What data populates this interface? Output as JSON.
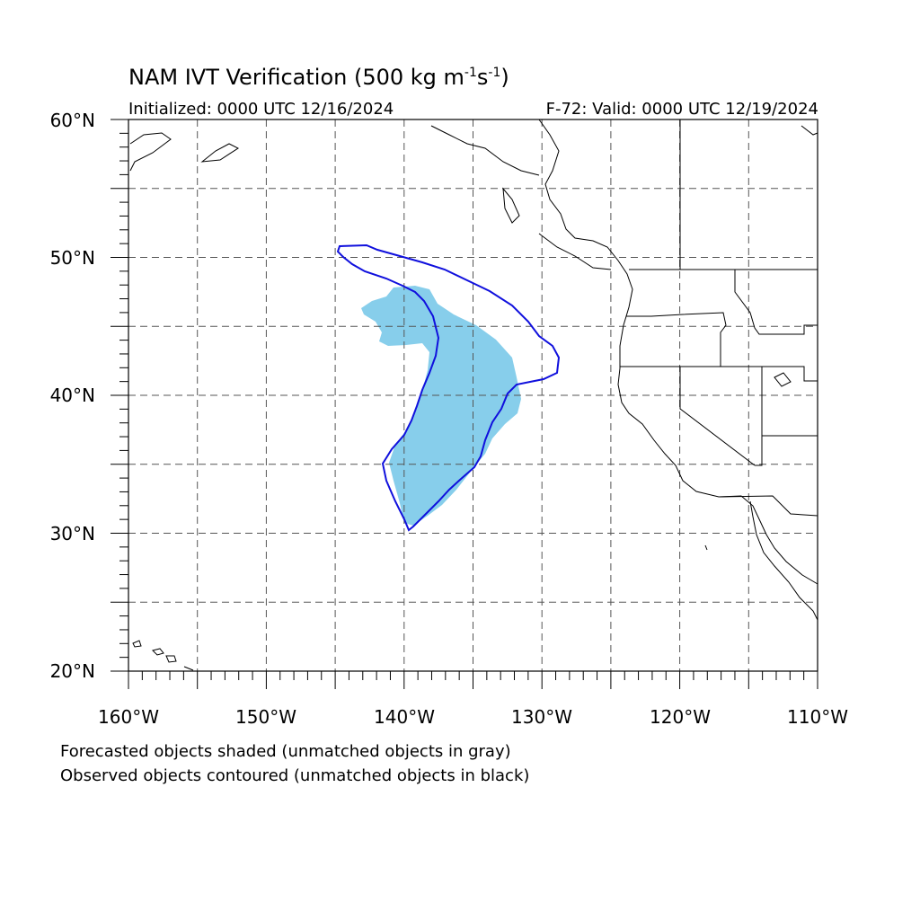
{
  "map": {
    "title_main": "NAM IVT Verification (500 kg m",
    "title_sup1": "-1",
    "title_mid": "s",
    "title_sup2": "-1",
    "title_end": ")",
    "initialized": "Initialized: 0000 UTC 12/16/2024",
    "valid": "F-72: Valid: 0000 UTC 12/19/2024",
    "lat_labels": [
      "60°N",
      "50°N",
      "40°N",
      "30°N",
      "20°N"
    ],
    "lon_labels": [
      "160°W",
      "150°W",
      "140°W",
      "130°W",
      "120°W",
      "110°W"
    ],
    "extent": {
      "lon_min": -160,
      "lon_max": -110,
      "lat_min": 20,
      "lat_max": 60
    },
    "forecast_fill_color": "#87ceeb",
    "observed_contour_color": "#1010dd",
    "notes": [
      "Forecasted objects shaded (unmatched objects in gray)",
      "Observed objects contoured (unmatched objects in black)"
    ]
  }
}
